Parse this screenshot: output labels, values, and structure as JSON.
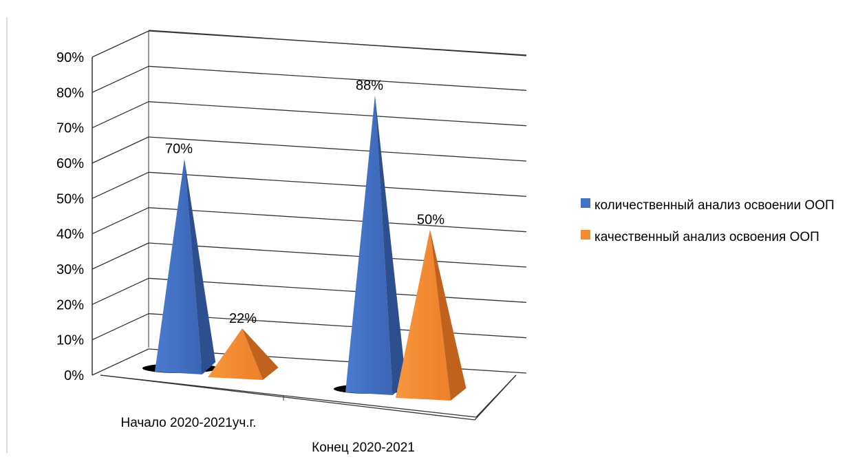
{
  "chart_data": {
    "type": "bar",
    "shape": "pyramid-3d",
    "categories": [
      "Начало 2020-2021уч.г.",
      "Конец 2020-2021"
    ],
    "series": [
      {
        "name": "количественный анализ освоении ООП",
        "values": [
          70,
          88
        ],
        "labels": [
          "70%",
          "88%"
        ],
        "color": "#4472C4"
      },
      {
        "name": "качественный анализ освоения ООП",
        "values": [
          22,
          50
        ],
        "labels": [
          "22%",
          "50%"
        ],
        "color": "#F58A33"
      }
    ],
    "y_ticks": [
      "0%",
      "10%",
      "20%",
      "30%",
      "40%",
      "50%",
      "60%",
      "70%",
      "80%",
      "90%"
    ],
    "ylim": [
      0,
      90
    ],
    "grid": true,
    "legend": "right"
  }
}
